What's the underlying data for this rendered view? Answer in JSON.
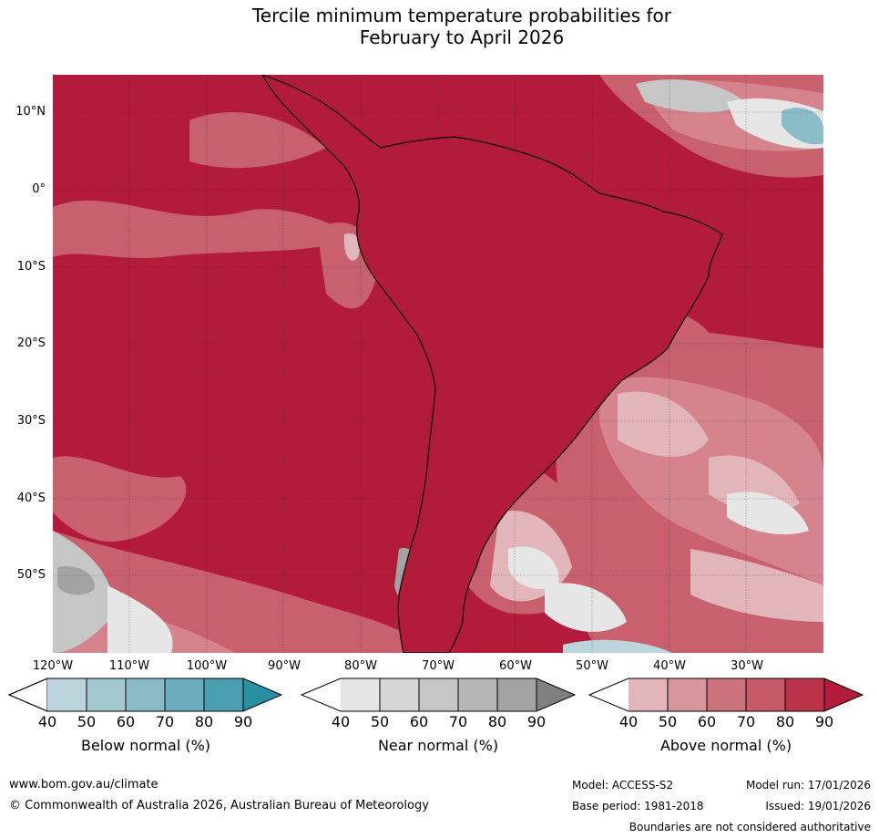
{
  "title": {
    "line1": "Tercile minimum temperature probabilities for",
    "line2": "February to April 2026"
  },
  "map": {
    "lat_labels": [
      "10°N",
      "0°",
      "10°S",
      "20°S",
      "30°S",
      "40°S",
      "50°S"
    ],
    "lon_labels": [
      "120°W",
      "110°W",
      "100°W",
      "90°W",
      "80°W",
      "70°W",
      "60°W",
      "50°W",
      "40°W",
      "30°W"
    ],
    "colors": {
      "ocean_dominant": "#b31b3a",
      "above_80": "#c13a52",
      "above_70": "#c9606e",
      "above_60": "#d5848e",
      "above_50": "#e1b5ba",
      "near_40": "#e6e6e6",
      "near_60": "#c6c6c6",
      "near_80": "#a3a3a3",
      "below_40": "#bcd5dc",
      "below_60": "#8bbdc8",
      "coastline": "#000000",
      "borders": "#808080"
    }
  },
  "colorbars": [
    {
      "name": "below",
      "label": "Below normal (%)",
      "ticks": [
        "40",
        "50",
        "60",
        "70",
        "80",
        "90"
      ],
      "colors": [
        "#bcd5dc",
        "#a4c8d0",
        "#8bbbc6",
        "#6badba",
        "#4aa0b0",
        "#2b8fa3"
      ]
    },
    {
      "name": "near",
      "label": "Near normal (%)",
      "ticks": [
        "40",
        "50",
        "60",
        "70",
        "80",
        "90"
      ],
      "colors": [
        "#e6e6e6",
        "#d6d6d6",
        "#c6c6c6",
        "#b6b6b6",
        "#a3a3a3",
        "#808080"
      ]
    },
    {
      "name": "above",
      "label": "Above normal (%)",
      "ticks": [
        "40",
        "50",
        "60",
        "70",
        "80",
        "90"
      ],
      "colors": [
        "#e1b5ba",
        "#d8959c",
        "#cc727d",
        "#c65a68",
        "#bb3349",
        "#b31b3a"
      ]
    }
  ],
  "footer": {
    "website": "www.bom.gov.au/climate",
    "copyright": "© Commonwealth of Australia 2026, Australian Bureau of Meteorology",
    "model": "Model: ACCESS-S2",
    "model_run": "Model run: 17/01/2026",
    "base_period": "Base period: 1981-2018",
    "issued": "Issued: 19/01/2026",
    "disclaimer": "Boundaries are not considered authoritative"
  }
}
